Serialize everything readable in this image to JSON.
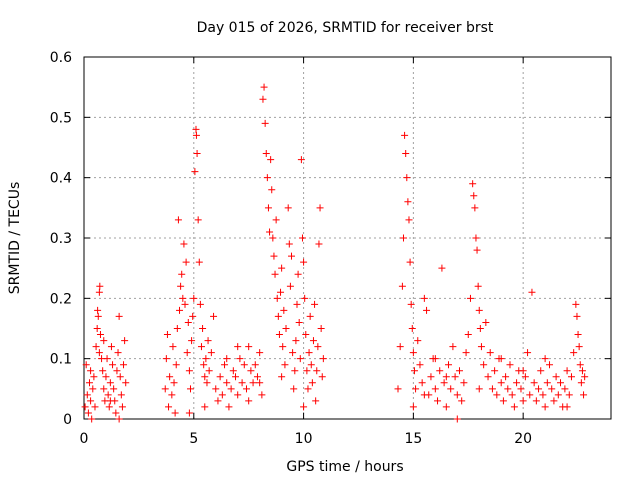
{
  "chart_data": {
    "type": "scatter",
    "title": "Day 015 of 2026, SRMTID for receiver brst",
    "xlabel": "GPS time / hours",
    "ylabel": "SRMTID / TECUs",
    "xlim": [
      0,
      24
    ],
    "ylim": [
      0,
      0.6
    ],
    "xticks": [
      "0",
      "5",
      "10",
      "15",
      "20"
    ],
    "yticks": [
      "0",
      "0.1",
      "0.2",
      "0.3",
      "0.4",
      "0.5",
      "0.6"
    ],
    "grid": true,
    "marker": "plus",
    "color": "#ff0000",
    "series": [
      {
        "name": "SRMTID",
        "points": [
          [
            0.05,
            0.02
          ],
          [
            0.1,
            0.09
          ],
          [
            0.15,
            0.04
          ],
          [
            0.2,
            0.01
          ],
          [
            0.25,
            0.06
          ],
          [
            0.3,
            0.03
          ],
          [
            0.35,
            0.0
          ],
          [
            0.4,
            0.05
          ],
          [
            0.45,
            0.07
          ],
          [
            0.5,
            0.02
          ],
          [
            0.55,
            0.12
          ],
          [
            0.6,
            0.15
          ],
          [
            0.62,
            0.18
          ],
          [
            0.65,
            0.17
          ],
          [
            0.7,
            0.21
          ],
          [
            0.72,
            0.22
          ],
          [
            0.75,
            0.14
          ],
          [
            0.8,
            0.1
          ],
          [
            0.85,
            0.08
          ],
          [
            0.9,
            0.05
          ],
          [
            0.95,
            0.03
          ],
          [
            1.0,
            0.07
          ],
          [
            1.05,
            0.1
          ],
          [
            1.1,
            0.04
          ],
          [
            1.15,
            0.02
          ],
          [
            1.2,
            0.06
          ],
          [
            1.25,
            0.12
          ],
          [
            1.3,
            0.09
          ],
          [
            1.35,
            0.05
          ],
          [
            1.4,
            0.03
          ],
          [
            1.45,
            0.01
          ],
          [
            1.5,
            0.08
          ],
          [
            1.55,
            0.11
          ],
          [
            1.6,
            0.17
          ],
          [
            1.65,
            0.07
          ],
          [
            1.7,
            0.04
          ],
          [
            1.75,
            0.02
          ],
          [
            1.8,
            0.09
          ],
          [
            1.85,
            0.13
          ],
          [
            1.9,
            0.06
          ],
          [
            0.3,
            0.08
          ],
          [
            0.7,
            0.11
          ],
          [
            1.2,
            0.03
          ],
          [
            1.6,
            0.0
          ],
          [
            0.9,
            0.13
          ],
          [
            3.7,
            0.05
          ],
          [
            3.75,
            0.1
          ],
          [
            3.8,
            0.14
          ],
          [
            3.85,
            0.02
          ],
          [
            3.9,
            0.07
          ],
          [
            4.0,
            0.04
          ],
          [
            4.05,
            0.12
          ],
          [
            4.1,
            0.06
          ],
          [
            4.15,
            0.01
          ],
          [
            4.2,
            0.09
          ],
          [
            4.25,
            0.15
          ],
          [
            4.3,
            0.33
          ],
          [
            4.35,
            0.18
          ],
          [
            4.4,
            0.22
          ],
          [
            4.45,
            0.24
          ],
          [
            4.5,
            0.2
          ],
          [
            4.55,
            0.29
          ],
          [
            4.6,
            0.19
          ],
          [
            4.65,
            0.26
          ],
          [
            4.7,
            0.11
          ],
          [
            4.75,
            0.16
          ],
          [
            4.8,
            0.08
          ],
          [
            4.85,
            0.05
          ],
          [
            4.9,
            0.13
          ],
          [
            4.95,
            0.17
          ],
          [
            5.0,
            0.2
          ],
          [
            5.05,
            0.41
          ],
          [
            5.1,
            0.48
          ],
          [
            5.12,
            0.47
          ],
          [
            5.15,
            0.44
          ],
          [
            5.2,
            0.33
          ],
          [
            5.25,
            0.26
          ],
          [
            5.3,
            0.19
          ],
          [
            5.35,
            0.12
          ],
          [
            5.4,
            0.15
          ],
          [
            5.45,
            0.09
          ],
          [
            5.5,
            0.07
          ],
          [
            5.55,
            0.1
          ],
          [
            5.6,
            0.06
          ],
          [
            5.65,
            0.13
          ],
          [
            5.7,
            0.08
          ],
          [
            5.8,
            0.11
          ],
          [
            5.9,
            0.17
          ],
          [
            6.0,
            0.05
          ],
          [
            6.1,
            0.03
          ],
          [
            6.2,
            0.07
          ],
          [
            6.3,
            0.04
          ],
          [
            6.4,
            0.09
          ],
          [
            6.5,
            0.06
          ],
          [
            6.6,
            0.02
          ],
          [
            6.7,
            0.05
          ],
          [
            6.8,
            0.08
          ],
          [
            6.9,
            0.07
          ],
          [
            7.0,
            0.04
          ],
          [
            7.1,
            0.1
          ],
          [
            7.2,
            0.06
          ],
          [
            7.3,
            0.09
          ],
          [
            7.4,
            0.05
          ],
          [
            7.5,
            0.12
          ],
          [
            7.6,
            0.08
          ],
          [
            7.7,
            0.06
          ],
          [
            7.8,
            0.09
          ],
          [
            7.9,
            0.07
          ],
          [
            8.0,
            0.11
          ],
          [
            8.1,
            0.04
          ],
          [
            8.15,
            0.53
          ],
          [
            8.2,
            0.55
          ],
          [
            8.25,
            0.49
          ],
          [
            8.3,
            0.44
          ],
          [
            8.35,
            0.4
          ],
          [
            8.4,
            0.35
          ],
          [
            8.45,
            0.31
          ],
          [
            8.5,
            0.43
          ],
          [
            8.55,
            0.38
          ],
          [
            8.6,
            0.3
          ],
          [
            8.65,
            0.27
          ],
          [
            8.7,
            0.24
          ],
          [
            8.75,
            0.33
          ],
          [
            8.8,
            0.2
          ],
          [
            8.85,
            0.17
          ],
          [
            8.9,
            0.14
          ],
          [
            8.95,
            0.21
          ],
          [
            9.0,
            0.25
          ],
          [
            9.05,
            0.12
          ],
          [
            9.1,
            0.18
          ],
          [
            9.15,
            0.09
          ],
          [
            9.2,
            0.15
          ],
          [
            9.3,
            0.35
          ],
          [
            9.35,
            0.29
          ],
          [
            9.4,
            0.22
          ],
          [
            9.45,
            0.27
          ],
          [
            9.5,
            0.11
          ],
          [
            9.55,
            0.05
          ],
          [
            9.6,
            0.08
          ],
          [
            9.65,
            0.13
          ],
          [
            9.7,
            0.19
          ],
          [
            9.75,
            0.24
          ],
          [
            9.8,
            0.16
          ],
          [
            9.85,
            0.1
          ],
          [
            9.9,
            0.43
          ],
          [
            9.95,
            0.3
          ],
          [
            10.0,
            0.26
          ],
          [
            10.05,
            0.2
          ],
          [
            10.1,
            0.14
          ],
          [
            10.15,
            0.08
          ],
          [
            10.2,
            0.05
          ],
          [
            10.25,
            0.11
          ],
          [
            10.3,
            0.17
          ],
          [
            10.35,
            0.09
          ],
          [
            10.4,
            0.06
          ],
          [
            10.45,
            0.13
          ],
          [
            10.5,
            0.19
          ],
          [
            10.55,
            0.03
          ],
          [
            10.6,
            0.08
          ],
          [
            10.65,
            0.12
          ],
          [
            10.7,
            0.29
          ],
          [
            10.75,
            0.35
          ],
          [
            10.8,
            0.15
          ],
          [
            10.85,
            0.07
          ],
          [
            10.9,
            0.1
          ],
          [
            7.0,
            0.12
          ],
          [
            7.5,
            0.03
          ],
          [
            8.0,
            0.06
          ],
          [
            6.5,
            0.1
          ],
          [
            5.5,
            0.02
          ],
          [
            4.8,
            0.01
          ],
          [
            9.0,
            0.07
          ],
          [
            10.0,
            0.02
          ],
          [
            14.3,
            0.05
          ],
          [
            14.4,
            0.12
          ],
          [
            14.5,
            0.22
          ],
          [
            14.55,
            0.3
          ],
          [
            14.6,
            0.47
          ],
          [
            14.65,
            0.44
          ],
          [
            14.7,
            0.4
          ],
          [
            14.75,
            0.36
          ],
          [
            14.8,
            0.33
          ],
          [
            14.85,
            0.26
          ],
          [
            14.9,
            0.19
          ],
          [
            14.95,
            0.15
          ],
          [
            15.0,
            0.11
          ],
          [
            15.05,
            0.08
          ],
          [
            15.1,
            0.05
          ],
          [
            15.2,
            0.13
          ],
          [
            15.3,
            0.09
          ],
          [
            15.4,
            0.06
          ],
          [
            15.5,
            0.2
          ],
          [
            15.6,
            0.18
          ],
          [
            15.7,
            0.04
          ],
          [
            15.8,
            0.07
          ],
          [
            15.9,
            0.1
          ],
          [
            16.0,
            0.05
          ],
          [
            16.1,
            0.03
          ],
          [
            16.2,
            0.08
          ],
          [
            16.3,
            0.25
          ],
          [
            16.4,
            0.06
          ],
          [
            16.5,
            0.02
          ],
          [
            16.6,
            0.09
          ],
          [
            16.7,
            0.05
          ],
          [
            16.8,
            0.12
          ],
          [
            16.9,
            0.07
          ],
          [
            17.0,
            0.04
          ],
          [
            17.1,
            0.08
          ],
          [
            17.2,
            0.03
          ],
          [
            17.3,
            0.06
          ],
          [
            17.4,
            0.11
          ],
          [
            17.5,
            0.14
          ],
          [
            17.6,
            0.2
          ],
          [
            17.7,
            0.39
          ],
          [
            17.75,
            0.37
          ],
          [
            17.8,
            0.35
          ],
          [
            17.85,
            0.3
          ],
          [
            17.9,
            0.28
          ],
          [
            17.95,
            0.22
          ],
          [
            18.0,
            0.18
          ],
          [
            18.05,
            0.15
          ],
          [
            18.1,
            0.12
          ],
          [
            18.2,
            0.09
          ],
          [
            18.3,
            0.16
          ],
          [
            18.4,
            0.07
          ],
          [
            18.5,
            0.11
          ],
          [
            18.6,
            0.05
          ],
          [
            18.7,
            0.08
          ],
          [
            18.8,
            0.04
          ],
          [
            18.9,
            0.1
          ],
          [
            19.0,
            0.06
          ],
          [
            19.1,
            0.03
          ],
          [
            19.2,
            0.07
          ],
          [
            19.3,
            0.05
          ],
          [
            19.4,
            0.09
          ],
          [
            19.5,
            0.04
          ],
          [
            19.6,
            0.02
          ],
          [
            19.7,
            0.06
          ],
          [
            19.8,
            0.08
          ],
          [
            19.9,
            0.05
          ],
          [
            20.0,
            0.03
          ],
          [
            20.1,
            0.07
          ],
          [
            20.2,
            0.11
          ],
          [
            20.3,
            0.04
          ],
          [
            20.4,
            0.21
          ],
          [
            20.5,
            0.06
          ],
          [
            20.6,
            0.03
          ],
          [
            20.7,
            0.05
          ],
          [
            20.8,
            0.08
          ],
          [
            20.9,
            0.04
          ],
          [
            21.0,
            0.02
          ],
          [
            21.1,
            0.06
          ],
          [
            21.2,
            0.09
          ],
          [
            21.3,
            0.05
          ],
          [
            21.4,
            0.03
          ],
          [
            21.5,
            0.07
          ],
          [
            21.6,
            0.04
          ],
          [
            21.7,
            0.06
          ],
          [
            21.8,
            0.02
          ],
          [
            21.9,
            0.05
          ],
          [
            22.0,
            0.08
          ],
          [
            22.1,
            0.04
          ],
          [
            22.2,
            0.07
          ],
          [
            22.3,
            0.11
          ],
          [
            22.4,
            0.19
          ],
          [
            22.45,
            0.17
          ],
          [
            22.5,
            0.14
          ],
          [
            22.55,
            0.12
          ],
          [
            22.6,
            0.09
          ],
          [
            22.65,
            0.06
          ],
          [
            22.7,
            0.08
          ],
          [
            22.75,
            0.04
          ],
          [
            22.8,
            0.07
          ],
          [
            15.0,
            0.02
          ],
          [
            16.0,
            0.1
          ],
          [
            17.0,
            0.0
          ],
          [
            18.0,
            0.05
          ],
          [
            19.0,
            0.1
          ],
          [
            20.0,
            0.08
          ],
          [
            21.0,
            0.1
          ],
          [
            22.0,
            0.02
          ],
          [
            15.5,
            0.04
          ],
          [
            16.5,
            0.07
          ]
        ]
      }
    ]
  }
}
